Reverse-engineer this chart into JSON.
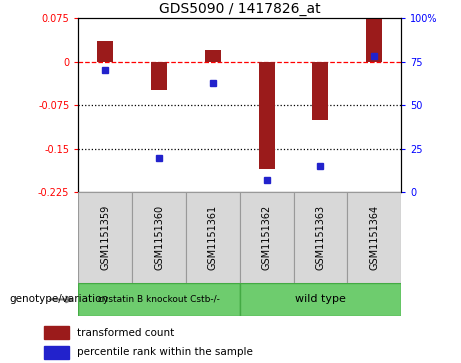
{
  "title": "GDS5090 / 1417826_at",
  "samples": [
    "GSM1151359",
    "GSM1151360",
    "GSM1151361",
    "GSM1151362",
    "GSM1151363",
    "GSM1151364"
  ],
  "bar_values": [
    0.035,
    -0.048,
    0.02,
    -0.185,
    -0.1,
    0.075
  ],
  "percentile_values": [
    70,
    20,
    63,
    7,
    15,
    78
  ],
  "ylim_left": [
    -0.225,
    0.075
  ],
  "ylim_right": [
    0,
    100
  ],
  "yticks_left": [
    0.075,
    0,
    -0.075,
    -0.15,
    -0.225
  ],
  "ytick_labels_left": [
    "0.075",
    "0",
    "-0.075",
    "-0.15",
    "-0.225"
  ],
  "yticks_right": [
    100,
    75,
    50,
    25,
    0
  ],
  "ytick_labels_right": [
    "100%",
    "75",
    "50",
    "25",
    "0"
  ],
  "bar_color": "#9B1B1B",
  "dot_color": "#2222CC",
  "bg_color": "#D8D8D8",
  "group1_label": "cystatin B knockout Cstb-/-",
  "group2_label": "wild type",
  "group1_color": "#6ECC6E",
  "group2_color": "#6ECC6E",
  "genotype_label": "genotype/variation",
  "legend_bar_label": "transformed count",
  "legend_dot_label": "percentile rank within the sample",
  "dotted_lines": [
    -0.075,
    -0.15
  ]
}
